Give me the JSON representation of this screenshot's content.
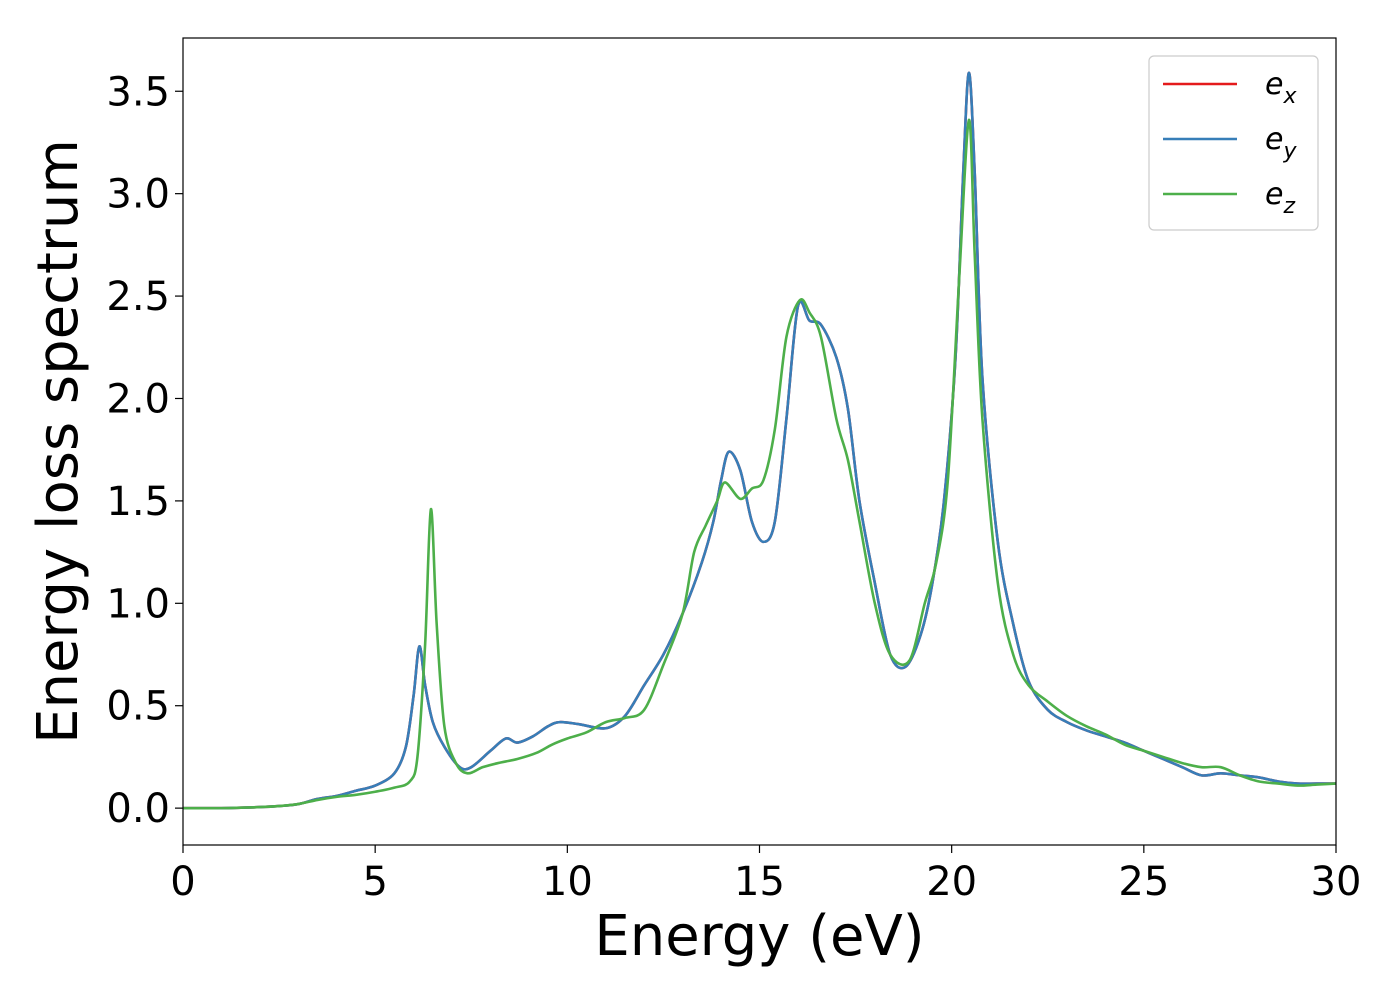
{
  "chart_data": {
    "type": "line",
    "title": "",
    "xlabel": "Energy (eV)",
    "ylabel": "Energy loss spectrum",
    "xlim": [
      0,
      30
    ],
    "ylim": [
      -0.18,
      3.76
    ],
    "xticks": [
      0,
      5,
      10,
      15,
      20,
      25,
      30
    ],
    "xtick_labels": [
      "0",
      "5",
      "10",
      "15",
      "20",
      "25",
      "30"
    ],
    "yticks": [
      0.0,
      0.5,
      1.0,
      1.5,
      2.0,
      2.5,
      3.0,
      3.5
    ],
    "ytick_labels": [
      "0.0",
      "0.5",
      "1.0",
      "1.5",
      "2.0",
      "2.5",
      "3.0",
      "3.5"
    ],
    "grid": false,
    "legend": {
      "placement": "top-right",
      "entries": [
        {
          "base": "e",
          "sub": "x",
          "color": "#e41a1c"
        },
        {
          "base": "e",
          "sub": "y",
          "color": "#377eb8"
        },
        {
          "base": "e",
          "sub": "z",
          "color": "#4daf4a"
        }
      ]
    },
    "series": [
      {
        "name": "e_x",
        "color": "#e41a1c",
        "points": [
          [
            0,
            0
          ],
          [
            1,
            0
          ],
          [
            2,
            0.005
          ],
          [
            2.5,
            0.01
          ],
          [
            3,
            0.02
          ],
          [
            3.5,
            0.045
          ],
          [
            4,
            0.06
          ],
          [
            4.5,
            0.085
          ],
          [
            5,
            0.11
          ],
          [
            5.5,
            0.17
          ],
          [
            5.8,
            0.3
          ],
          [
            6,
            0.55
          ],
          [
            6.15,
            0.79
          ],
          [
            6.3,
            0.6
          ],
          [
            6.5,
            0.42
          ],
          [
            6.8,
            0.3
          ],
          [
            7.2,
            0.2
          ],
          [
            7.5,
            0.2
          ],
          [
            8,
            0.28
          ],
          [
            8.4,
            0.34
          ],
          [
            8.7,
            0.32
          ],
          [
            9.1,
            0.35
          ],
          [
            9.5,
            0.4
          ],
          [
            9.8,
            0.42
          ],
          [
            10.3,
            0.41
          ],
          [
            11,
            0.39
          ],
          [
            11.5,
            0.45
          ],
          [
            12,
            0.6
          ],
          [
            12.5,
            0.75
          ],
          [
            13,
            0.95
          ],
          [
            13.5,
            1.2
          ],
          [
            13.8,
            1.4
          ],
          [
            14,
            1.6
          ],
          [
            14.2,
            1.74
          ],
          [
            14.5,
            1.65
          ],
          [
            14.8,
            1.4
          ],
          [
            15.1,
            1.3
          ],
          [
            15.4,
            1.4
          ],
          [
            15.7,
            1.9
          ],
          [
            16,
            2.45
          ],
          [
            16.3,
            2.38
          ],
          [
            16.6,
            2.36
          ],
          [
            17,
            2.2
          ],
          [
            17.3,
            1.95
          ],
          [
            17.6,
            1.5
          ],
          [
            18,
            1.1
          ],
          [
            18.4,
            0.75
          ],
          [
            18.8,
            0.69
          ],
          [
            19.2,
            0.85
          ],
          [
            19.5,
            1.1
          ],
          [
            19.8,
            1.5
          ],
          [
            20.1,
            2.2
          ],
          [
            20.3,
            3.1
          ],
          [
            20.45,
            3.59
          ],
          [
            20.6,
            3.1
          ],
          [
            20.8,
            2.1
          ],
          [
            21.2,
            1.3
          ],
          [
            21.6,
            0.9
          ],
          [
            22,
            0.62
          ],
          [
            22.5,
            0.48
          ],
          [
            23,
            0.42
          ],
          [
            23.5,
            0.38
          ],
          [
            24,
            0.35
          ],
          [
            24.5,
            0.32
          ],
          [
            25,
            0.28
          ],
          [
            25.5,
            0.24
          ],
          [
            26,
            0.2
          ],
          [
            26.5,
            0.16
          ],
          [
            27,
            0.17
          ],
          [
            27.5,
            0.16
          ],
          [
            28,
            0.15
          ],
          [
            28.5,
            0.13
          ],
          [
            29,
            0.12
          ],
          [
            29.5,
            0.12
          ],
          [
            30,
            0.12
          ]
        ]
      },
      {
        "name": "e_y",
        "color": "#377eb8",
        "points": [
          [
            0,
            0
          ],
          [
            1,
            0
          ],
          [
            2,
            0.005
          ],
          [
            2.5,
            0.01
          ],
          [
            3,
            0.02
          ],
          [
            3.5,
            0.045
          ],
          [
            4,
            0.06
          ],
          [
            4.5,
            0.085
          ],
          [
            5,
            0.11
          ],
          [
            5.5,
            0.17
          ],
          [
            5.8,
            0.3
          ],
          [
            6,
            0.55
          ],
          [
            6.15,
            0.79
          ],
          [
            6.3,
            0.6
          ],
          [
            6.5,
            0.42
          ],
          [
            6.8,
            0.3
          ],
          [
            7.2,
            0.2
          ],
          [
            7.5,
            0.2
          ],
          [
            8,
            0.28
          ],
          [
            8.4,
            0.34
          ],
          [
            8.7,
            0.32
          ],
          [
            9.1,
            0.35
          ],
          [
            9.5,
            0.4
          ],
          [
            9.8,
            0.42
          ],
          [
            10.3,
            0.41
          ],
          [
            11,
            0.39
          ],
          [
            11.5,
            0.45
          ],
          [
            12,
            0.6
          ],
          [
            12.5,
            0.75
          ],
          [
            13,
            0.95
          ],
          [
            13.5,
            1.2
          ],
          [
            13.8,
            1.4
          ],
          [
            14,
            1.6
          ],
          [
            14.2,
            1.74
          ],
          [
            14.5,
            1.65
          ],
          [
            14.8,
            1.4
          ],
          [
            15.1,
            1.3
          ],
          [
            15.4,
            1.4
          ],
          [
            15.7,
            1.9
          ],
          [
            16,
            2.45
          ],
          [
            16.3,
            2.38
          ],
          [
            16.6,
            2.36
          ],
          [
            17,
            2.2
          ],
          [
            17.3,
            1.95
          ],
          [
            17.6,
            1.5
          ],
          [
            18,
            1.1
          ],
          [
            18.4,
            0.75
          ],
          [
            18.8,
            0.69
          ],
          [
            19.2,
            0.85
          ],
          [
            19.5,
            1.1
          ],
          [
            19.8,
            1.5
          ],
          [
            20.1,
            2.2
          ],
          [
            20.3,
            3.1
          ],
          [
            20.45,
            3.59
          ],
          [
            20.6,
            3.1
          ],
          [
            20.8,
            2.1
          ],
          [
            21.2,
            1.3
          ],
          [
            21.6,
            0.9
          ],
          [
            22,
            0.62
          ],
          [
            22.5,
            0.48
          ],
          [
            23,
            0.42
          ],
          [
            23.5,
            0.38
          ],
          [
            24,
            0.35
          ],
          [
            24.5,
            0.32
          ],
          [
            25,
            0.28
          ],
          [
            25.5,
            0.24
          ],
          [
            26,
            0.2
          ],
          [
            26.5,
            0.16
          ],
          [
            27,
            0.17
          ],
          [
            27.5,
            0.16
          ],
          [
            28,
            0.15
          ],
          [
            28.5,
            0.13
          ],
          [
            29,
            0.12
          ],
          [
            29.5,
            0.12
          ],
          [
            30,
            0.12
          ]
        ]
      },
      {
        "name": "e_z",
        "color": "#4daf4a",
        "points": [
          [
            0,
            0
          ],
          [
            1,
            0
          ],
          [
            2,
            0.005
          ],
          [
            2.5,
            0.01
          ],
          [
            3,
            0.02
          ],
          [
            3.5,
            0.04
          ],
          [
            4,
            0.055
          ],
          [
            4.5,
            0.065
          ],
          [
            5,
            0.08
          ],
          [
            5.5,
            0.1
          ],
          [
            5.9,
            0.13
          ],
          [
            6.1,
            0.25
          ],
          [
            6.3,
            0.8
          ],
          [
            6.45,
            1.46
          ],
          [
            6.6,
            0.9
          ],
          [
            6.8,
            0.4
          ],
          [
            7.1,
            0.22
          ],
          [
            7.4,
            0.17
          ],
          [
            7.8,
            0.2
          ],
          [
            8.2,
            0.22
          ],
          [
            8.7,
            0.24
          ],
          [
            9.2,
            0.27
          ],
          [
            9.6,
            0.31
          ],
          [
            10,
            0.34
          ],
          [
            10.5,
            0.37
          ],
          [
            11,
            0.42
          ],
          [
            11.5,
            0.44
          ],
          [
            12,
            0.48
          ],
          [
            12.5,
            0.7
          ],
          [
            13,
            0.95
          ],
          [
            13.3,
            1.25
          ],
          [
            13.6,
            1.38
          ],
          [
            13.9,
            1.5
          ],
          [
            14.1,
            1.59
          ],
          [
            14.5,
            1.51
          ],
          [
            14.8,
            1.56
          ],
          [
            15.1,
            1.6
          ],
          [
            15.4,
            1.85
          ],
          [
            15.7,
            2.3
          ],
          [
            16.05,
            2.48
          ],
          [
            16.3,
            2.42
          ],
          [
            16.6,
            2.3
          ],
          [
            17,
            1.9
          ],
          [
            17.3,
            1.7
          ],
          [
            17.6,
            1.4
          ],
          [
            18,
            1.0
          ],
          [
            18.4,
            0.75
          ],
          [
            18.9,
            0.72
          ],
          [
            19.3,
            1.0
          ],
          [
            19.6,
            1.2
          ],
          [
            19.9,
            1.6
          ],
          [
            20.2,
            2.6
          ],
          [
            20.45,
            3.36
          ],
          [
            20.6,
            2.7
          ],
          [
            20.8,
            1.9
          ],
          [
            21.2,
            1.1
          ],
          [
            21.6,
            0.75
          ],
          [
            22,
            0.6
          ],
          [
            22.5,
            0.52
          ],
          [
            23,
            0.45
          ],
          [
            23.5,
            0.4
          ],
          [
            24,
            0.36
          ],
          [
            24.5,
            0.31
          ],
          [
            25,
            0.28
          ],
          [
            25.5,
            0.25
          ],
          [
            26,
            0.22
          ],
          [
            26.5,
            0.2
          ],
          [
            27,
            0.2
          ],
          [
            27.5,
            0.16
          ],
          [
            28,
            0.13
          ],
          [
            28.5,
            0.12
          ],
          [
            29,
            0.11
          ],
          [
            29.5,
            0.115
          ],
          [
            30,
            0.12
          ]
        ]
      }
    ]
  }
}
